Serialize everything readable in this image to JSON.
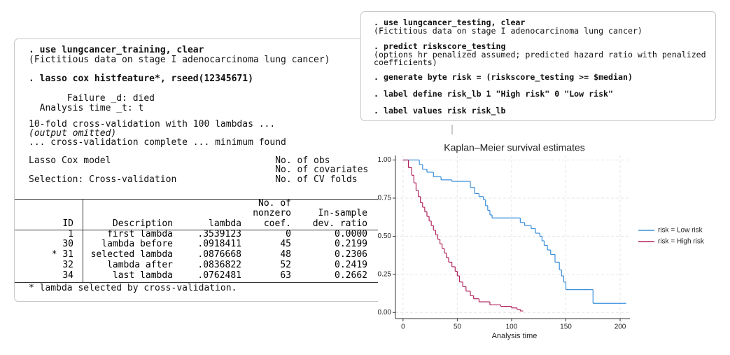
{
  "left": {
    "lines": [
      ". use lungcancer_training, clear",
      "(Fictitious data on stage I adenocarcinoma lung cancer)",
      ". lasso cox histfeature*, rseed(12345671)",
      "       Failure _d: died",
      "  Analysis time _t: t",
      "10-fold cross-validation with 100 lambdas ...",
      "(output omitted)",
      "... cross-validation complete ... minimum found",
      "Lasso Cox model                              No. of obs",
      "                                             No. of covariates",
      "Selection: Cross-validation                  No. of CV folds"
    ],
    "table": {
      "header": [
        [
          "ID"
        ],
        [
          "Description"
        ],
        [
          "lambda"
        ],
        [
          "No. of",
          "nonzero",
          "coef."
        ],
        [
          "In-sample",
          "dev. ratio"
        ]
      ],
      "rows": [
        [
          "1",
          "first lambda",
          ".3539123",
          "0",
          "0.0000"
        ],
        [
          "30",
          "lambda before",
          ".0918411",
          "45",
          "0.2199"
        ],
        [
          "* 31",
          "selected lambda",
          ".0876668",
          "48",
          "0.2306"
        ],
        [
          "32",
          "lambda after",
          ".0836822",
          "52",
          "0.2419"
        ],
        [
          "34",
          "last lambda",
          ".0762481",
          "63",
          "0.2662"
        ]
      ],
      "footnote": "* lambda selected by cross-validation."
    }
  },
  "right": {
    "lines": [
      ". use lungcancer_testing, clear",
      "(Fictitious data on stage I adenocarcinoma lung cancer)",
      ". predict riskscore_testing",
      "(options hr penalized assumed; predicted hazard ratio with penalized",
      "coefficients)",
      ". generate byte risk = (riskscore_testing >= $median)",
      ". label define risk_lb 1 \"High risk\" 0 \"Low risk\"",
      ". label values risk risk_lb"
    ]
  },
  "chart_data": {
    "type": "step",
    "title": "Kaplan–Meier survival estimates",
    "x_label": "Analysis time",
    "xlim": [
      -7,
      209
    ],
    "xticks": [
      0,
      50,
      100,
      150,
      200
    ],
    "ylim": [
      -0.04,
      1.03
    ],
    "yticks": [
      {
        "value": 0,
        "label": "0.00"
      },
      {
        "value": 0.25,
        "label": "0.25"
      },
      {
        "value": 0.5,
        "label": "0.50"
      },
      {
        "value": 0.75,
        "label": "0.75"
      },
      {
        "value": 1,
        "label": "1.00"
      }
    ],
    "grid": true,
    "legend": "right",
    "series": [
      {
        "name": "risk = Low risk",
        "color": "#3a8fdb",
        "x": [
          0,
          15,
          18,
          22,
          28,
          35,
          45,
          60,
          62,
          66,
          70,
          74,
          76,
          78,
          80,
          82,
          105,
          108,
          112,
          118,
          122,
          126,
          128,
          130,
          133,
          136,
          140,
          144,
          146,
          148,
          150,
          172,
          175,
          205
        ],
        "values": [
          1,
          0.97,
          0.94,
          0.92,
          0.89,
          0.87,
          0.86,
          0.86,
          0.82,
          0.78,
          0.76,
          0.74,
          0.7,
          0.67,
          0.64,
          0.62,
          0.62,
          0.59,
          0.57,
          0.55,
          0.52,
          0.5,
          0.47,
          0.44,
          0.41,
          0.38,
          0.33,
          0.28,
          0.24,
          0.2,
          0.15,
          0.15,
          0.06,
          0.06
        ]
      },
      {
        "name": "risk = High risk",
        "color": "#b3245e",
        "x": [
          0,
          5,
          8,
          10,
          12,
          14,
          16,
          18,
          20,
          22,
          24,
          26,
          28,
          30,
          32,
          34,
          36,
          38,
          40,
          42,
          45,
          48,
          50,
          52,
          55,
          58,
          62,
          65,
          70,
          80,
          90,
          100,
          105,
          108,
          110
        ],
        "values": [
          1,
          0.95,
          0.9,
          0.85,
          0.8,
          0.76,
          0.72,
          0.69,
          0.66,
          0.63,
          0.6,
          0.57,
          0.54,
          0.51,
          0.48,
          0.45,
          0.42,
          0.39,
          0.36,
          0.33,
          0.3,
          0.27,
          0.24,
          0.2,
          0.17,
          0.14,
          0.11,
          0.09,
          0.07,
          0.05,
          0.04,
          0.03,
          0.02,
          0.01,
          0.01
        ]
      }
    ]
  }
}
